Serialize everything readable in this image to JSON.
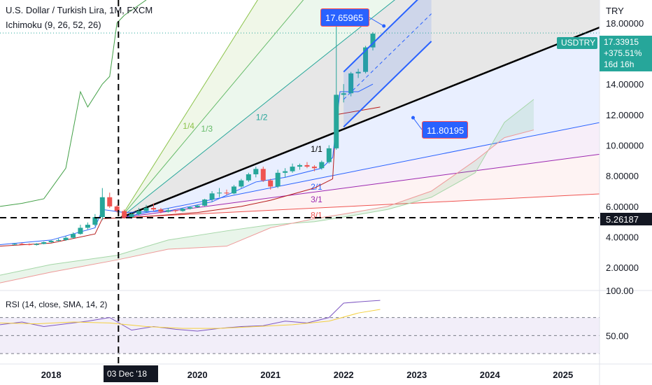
{
  "header": {
    "title": "U.S. Dollar / Turkish Lira, 1M, FXCM",
    "indicator": "Ichimoku (9, 26, 52, 26)",
    "currency": "TRY"
  },
  "rsi_panel": {
    "label": "RSI (14, close, SMA, 14, 2)"
  },
  "price_tag": {
    "symbol": "USDTRY",
    "price": "17.33915",
    "change": "+375.51%",
    "countdown": "16d 16h"
  },
  "callouts": {
    "peak": "17.65965",
    "trendline": "11.80195"
  },
  "horizontal_level": "5.26187",
  "crosshair_date": "03 Dec '18",
  "fan_labels": [
    "1/4",
    "1/3",
    "1/2",
    "1/1",
    "2/1",
    "3/1",
    "8/1"
  ],
  "colors": {
    "up": "#26a69a",
    "down": "#ef5350",
    "tag": "#26a69a",
    "callout": "#2962ff"
  },
  "chart_data": [
    {
      "type": "line",
      "subtype": "candlestick",
      "xlabel": "",
      "ylabel": "",
      "y_axis_unit": "TRY",
      "x_ticks": [
        "2018",
        "2020",
        "2021",
        "2022",
        "2023",
        "2024",
        "2025"
      ],
      "y_ticks": [
        "2.00000",
        "4.00000",
        "6.00000",
        "8.00000",
        "10.00000",
        "12.00000",
        "14.00000",
        "18.00000"
      ],
      "ylim": [
        0.5,
        19.5
      ],
      "xlim": [
        2017.3,
        2025.5
      ],
      "grid": false,
      "series": [
        {
          "values_ohlc_approx": [
            [
              2017.5,
              3.5,
              3.6,
              3.45,
              3.55
            ],
            [
              2017.6,
              3.55,
              3.62,
              3.5,
              3.52
            ],
            [
              2017.7,
              3.52,
              3.58,
              3.45,
              3.48
            ],
            [
              2017.8,
              3.48,
              3.6,
              3.44,
              3.55
            ],
            [
              2017.9,
              3.55,
              3.7,
              3.52,
              3.66
            ],
            [
              2018.0,
              3.66,
              3.8,
              3.62,
              3.75
            ],
            [
              2018.1,
              3.75,
              3.9,
              3.7,
              3.8
            ],
            [
              2018.2,
              3.8,
              4.05,
              3.75,
              3.95
            ],
            [
              2018.3,
              3.95,
              4.3,
              3.9,
              4.2
            ],
            [
              2018.4,
              4.2,
              4.8,
              4.15,
              4.6
            ],
            [
              2018.5,
              4.6,
              4.95,
              4.5,
              4.8
            ],
            [
              2018.6,
              4.8,
              5.5,
              4.7,
              5.3
            ],
            [
              2018.7,
              5.3,
              7.2,
              5.1,
              6.6
            ],
            [
              2018.8,
              6.6,
              6.9,
              5.9,
              6.0
            ],
            [
              2018.9,
              6.0,
              6.1,
              5.6,
              5.7
            ],
            [
              2019.0,
              5.7,
              5.8,
              5.2,
              5.3
            ],
            [
              2019.1,
              5.3,
              5.6,
              5.2,
              5.5
            ],
            [
              2019.2,
              5.5,
              5.9,
              5.4,
              5.7
            ],
            [
              2019.3,
              5.7,
              6.1,
              5.6,
              5.9
            ],
            [
              2019.4,
              5.9,
              6.2,
              5.7,
              5.8
            ],
            [
              2019.5,
              5.8,
              5.9,
              5.55,
              5.65
            ],
            [
              2019.6,
              5.65,
              5.9,
              5.6,
              5.75
            ],
            [
              2019.7,
              5.75,
              5.8,
              5.6,
              5.7
            ],
            [
              2019.8,
              5.7,
              5.9,
              5.65,
              5.85
            ],
            [
              2019.9,
              5.85,
              6.0,
              5.8,
              5.95
            ],
            [
              2020.0,
              5.95,
              6.1,
              5.9,
              6.05
            ],
            [
              2020.1,
              6.05,
              6.5,
              6.0,
              6.45
            ],
            [
              2020.2,
              6.45,
              7.0,
              6.3,
              6.85
            ],
            [
              2020.3,
              6.85,
              7.2,
              6.6,
              6.9
            ],
            [
              2020.4,
              6.9,
              7.1,
              6.75,
              6.85
            ],
            [
              2020.5,
              6.85,
              7.4,
              6.8,
              7.3
            ],
            [
              2020.6,
              7.3,
              7.8,
              7.2,
              7.7
            ],
            [
              2020.7,
              7.7,
              8.2,
              7.6,
              8.1
            ],
            [
              2020.8,
              8.1,
              8.6,
              7.9,
              8.45
            ],
            [
              2020.9,
              8.45,
              8.6,
              7.6,
              7.7
            ],
            [
              2021.0,
              7.7,
              7.8,
              7.1,
              7.3
            ],
            [
              2021.1,
              7.3,
              8.4,
              7.2,
              8.2
            ],
            [
              2021.2,
              8.2,
              8.5,
              7.9,
              8.3
            ],
            [
              2021.3,
              8.3,
              8.8,
              8.2,
              8.6
            ],
            [
              2021.4,
              8.6,
              8.8,
              8.4,
              8.7
            ],
            [
              2021.5,
              8.7,
              8.9,
              8.5,
              8.6
            ],
            [
              2021.6,
              8.6,
              8.7,
              8.3,
              8.5
            ],
            [
              2021.7,
              8.5,
              9.0,
              8.4,
              8.9
            ],
            [
              2021.8,
              8.9,
              10.0,
              8.8,
              9.8
            ],
            [
              2021.9,
              9.8,
              18.4,
              9.7,
              13.3
            ],
            [
              2022.0,
              13.3,
              14.0,
              12.8,
              13.4
            ],
            [
              2022.1,
              13.4,
              14.8,
              13.2,
              14.7
            ],
            [
              2022.2,
              14.7,
              15.0,
              14.4,
              14.8
            ],
            [
              2022.3,
              14.8,
              16.5,
              14.7,
              16.4
            ],
            [
              2022.4,
              16.4,
              17.4,
              16.2,
              17.3
            ]
          ]
        }
      ]
    },
    {
      "type": "line",
      "title": "RSI (14, close, SMA, 14, 2)",
      "y_ticks": [
        "50.00",
        "100.00"
      ],
      "ylim": [
        20,
        100
      ],
      "grid": false,
      "series": [
        {
          "name": "RSI",
          "x": [
            2017.3,
            2017.6,
            2017.9,
            2018.2,
            2018.5,
            2018.8,
            2019.1,
            2019.4,
            2019.7,
            2020.0,
            2020.3,
            2020.6,
            2020.9,
            2021.2,
            2021.5,
            2021.8,
            2022.0,
            2022.3,
            2022.5
          ],
          "values": [
            62,
            65,
            60,
            63,
            66,
            70,
            56,
            60,
            57,
            55,
            58,
            60,
            61,
            66,
            64,
            70,
            86,
            88,
            89
          ]
        },
        {
          "name": "RSI-based MA",
          "x": [
            2017.3,
            2017.8,
            2018.3,
            2018.8,
            2019.3,
            2019.8,
            2020.3,
            2020.8,
            2021.3,
            2021.8,
            2022.2,
            2022.5
          ],
          "values": [
            64,
            63,
            65,
            64,
            60,
            58,
            58,
            60,
            62,
            66,
            75,
            79
          ]
        }
      ]
    }
  ]
}
